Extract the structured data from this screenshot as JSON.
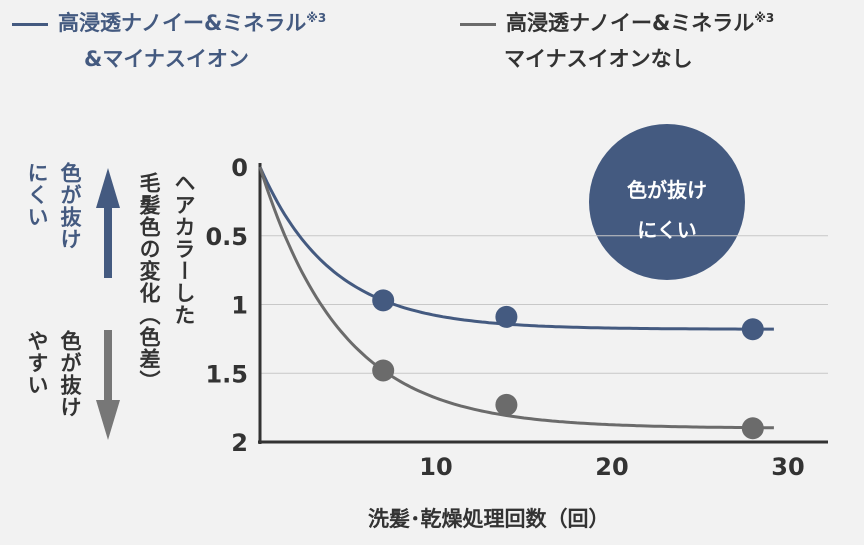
{
  "colors": {
    "blue": "#445a80",
    "gray": "#6b6b6b",
    "background": "#f2f2f2"
  },
  "legend": [
    {
      "line1": "高浸透ナノイー&ミネラル",
      "sup": "※3",
      "line2": "&マイナスイオン",
      "color": "#445a80"
    },
    {
      "line1": "高浸透ナノイー&ミネラル",
      "sup": "※3",
      "line2": "マイナスイオンなし",
      "color": "#6b6b6b"
    }
  ],
  "side": {
    "up_line1": "色が抜け",
    "up_line2": "にくい",
    "down_line1": "色が抜け",
    "down_line2": "やすい"
  },
  "badge": {
    "line1": "色が抜け",
    "line2": "にくい"
  },
  "chart_data": {
    "type": "line",
    "xlabel": "洗髪･乾燥処理回数（回）",
    "ylabel_line1": "ヘアカラーした",
    "ylabel_line2": "毛髪色の変化（色差）",
    "xlim": [
      0,
      32
    ],
    "ylim": [
      0,
      2
    ],
    "y_inverted": true,
    "grid": "horizontal",
    "xticks": [
      "10",
      "20",
      "30"
    ],
    "yticks": [
      "0",
      "0.5",
      "1",
      "1.5",
      "2"
    ],
    "series": [
      {
        "name": "高浸透ナノイー&ミネラル&マイナスイオン",
        "color": "#445a80",
        "points": [
          [
            7,
            0.97
          ],
          [
            14,
            1.09
          ],
          [
            28,
            1.18
          ]
        ]
      },
      {
        "name": "高浸透ナノイー&ミネラルマイナスイオンなし",
        "color": "#6b6b6b",
        "points": [
          [
            7,
            1.48
          ],
          [
            14,
            1.73
          ],
          [
            28,
            1.9
          ]
        ]
      }
    ]
  }
}
